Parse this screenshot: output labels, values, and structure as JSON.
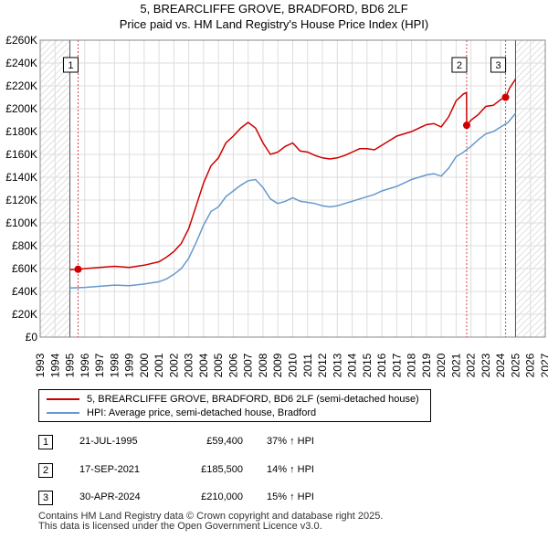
{
  "header": {
    "title": "5, BREARCLIFFE GROVE, BRADFORD, BD6 2LF",
    "subtitle": "Price paid vs. HM Land Registry's House Price Index (HPI)"
  },
  "colors": {
    "price_line": "#cc0000",
    "hpi_line": "#6699cc",
    "marker_vline": "#dd4444",
    "hatch": "#cccccc",
    "grid": "#dddddd"
  },
  "chart_data": {
    "type": "line",
    "title": "5, BREARCLIFFE GROVE, BRADFORD, BD6 2LF",
    "subtitle": "Price paid vs. HM Land Registry's House Price Index (HPI)",
    "xlabel": "",
    "ylabel": "",
    "xlim": [
      1993,
      2027
    ],
    "ylim": [
      0,
      260000
    ],
    "grid": true,
    "data_start": 1995.0,
    "data_end": 2025.0,
    "y_ticks": [
      0,
      20000,
      40000,
      60000,
      80000,
      100000,
      120000,
      140000,
      160000,
      180000,
      200000,
      220000,
      240000,
      260000
    ],
    "y_tick_labels": [
      "£0",
      "£20K",
      "£40K",
      "£60K",
      "£80K",
      "£100K",
      "£120K",
      "£140K",
      "£160K",
      "£180K",
      "£200K",
      "£220K",
      "£240K",
      "£260K"
    ],
    "x_ticks": [
      1993,
      1994,
      1995,
      1996,
      1997,
      1998,
      1999,
      2000,
      2001,
      2002,
      2003,
      2004,
      2005,
      2006,
      2007,
      2008,
      2009,
      2010,
      2011,
      2012,
      2013,
      2014,
      2015,
      2016,
      2017,
      2018,
      2019,
      2020,
      2021,
      2022,
      2023,
      2024,
      2025,
      2026,
      2027
    ],
    "x_tick_labels": [
      "1993",
      "1994",
      "1995",
      "1996",
      "1997",
      "1998",
      "1999",
      "2000",
      "2001",
      "2002",
      "2003",
      "2004",
      "2005",
      "2006",
      "2007",
      "2008",
      "2009",
      "2010",
      "2011",
      "2012",
      "2013",
      "2014",
      "2015",
      "2016",
      "2017",
      "2018",
      "2019",
      "2020",
      "2021",
      "2022",
      "2023",
      "2024",
      "2025",
      "2026",
      "2027"
    ],
    "series": [
      {
        "name": "5, BREARCLIFFE GROVE, BRADFORD, BD6 2LF (semi-detached house)",
        "color": "#cc0000",
        "x": [
          1995.0,
          1995.55,
          1996.0,
          1997.0,
          1998.0,
          1999.0,
          2000.0,
          2001.0,
          2001.5,
          2002.0,
          2002.5,
          2003.0,
          2003.5,
          2004.0,
          2004.5,
          2005.0,
          2005.5,
          2006.0,
          2006.5,
          2007.0,
          2007.5,
          2008.0,
          2008.5,
          2009.0,
          2009.5,
          2010.0,
          2010.5,
          2011.0,
          2011.5,
          2012.0,
          2012.5,
          2013.0,
          2013.5,
          2014.0,
          2014.5,
          2015.0,
          2015.5,
          2016.0,
          2016.5,
          2017.0,
          2017.5,
          2018.0,
          2018.5,
          2019.0,
          2019.5,
          2020.0,
          2020.5,
          2021.0,
          2021.5,
          2021.7,
          2021.71,
          2022.0,
          2022.5,
          2023.0,
          2023.5,
          2024.0,
          2024.33,
          2024.6,
          2025.0
        ],
        "values": [
          59000,
          59400,
          60000,
          61000,
          62000,
          61000,
          63000,
          66000,
          70000,
          75000,
          82000,
          95000,
          115000,
          135000,
          150000,
          157000,
          170000,
          176000,
          183000,
          188000,
          183000,
          170000,
          160000,
          162000,
          167000,
          170000,
          163000,
          162000,
          159000,
          157000,
          156000,
          157000,
          159000,
          162000,
          165000,
          165000,
          164000,
          168000,
          172000,
          176000,
          178000,
          180000,
          183000,
          186000,
          187000,
          184000,
          193000,
          207000,
          213000,
          214000,
          185500,
          190000,
          195000,
          202000,
          203000,
          208000,
          210000,
          218000,
          226000
        ]
      },
      {
        "name": "HPI: Average price, semi-detached house, Bradford",
        "color": "#6699cc",
        "x": [
          1995.0,
          1996.0,
          1997.0,
          1998.0,
          1999.0,
          2000.0,
          2001.0,
          2001.5,
          2002.0,
          2002.5,
          2003.0,
          2003.5,
          2004.0,
          2004.5,
          2005.0,
          2005.5,
          2006.0,
          2006.5,
          2007.0,
          2007.5,
          2008.0,
          2008.5,
          2009.0,
          2009.5,
          2010.0,
          2010.5,
          2011.0,
          2011.5,
          2012.0,
          2012.5,
          2013.0,
          2013.5,
          2014.0,
          2014.5,
          2015.0,
          2015.5,
          2016.0,
          2016.5,
          2017.0,
          2017.5,
          2018.0,
          2018.5,
          2019.0,
          2019.5,
          2020.0,
          2020.5,
          2021.0,
          2021.5,
          2022.0,
          2022.5,
          2023.0,
          2023.5,
          2024.0,
          2024.5,
          2025.0
        ],
        "values": [
          43000,
          43500,
          44500,
          45500,
          45000,
          46500,
          48500,
          51000,
          55000,
          60000,
          69000,
          83000,
          98000,
          110000,
          114000,
          123000,
          128000,
          133000,
          137000,
          138000,
          131000,
          121000,
          117000,
          119000,
          122000,
          119000,
          118000,
          117000,
          115000,
          114000,
          115000,
          117000,
          119000,
          121000,
          123000,
          125000,
          128000,
          130000,
          132000,
          135000,
          138000,
          140000,
          142000,
          143000,
          141000,
          148000,
          158000,
          162000,
          167000,
          173000,
          178000,
          180000,
          184000,
          188000,
          196000
        ]
      }
    ],
    "sales": [
      {
        "label": "1",
        "x": 1995.55,
        "value": 59400
      },
      {
        "label": "2",
        "x": 2021.71,
        "value": 185500
      },
      {
        "label": "3",
        "x": 2024.33,
        "value": 210000
      }
    ]
  },
  "legend": {
    "items": [
      {
        "label": "5, BREARCLIFFE GROVE, BRADFORD, BD6 2LF (semi-detached house)"
      },
      {
        "label": "HPI: Average price, semi-detached house, Bradford"
      }
    ]
  },
  "transactions": [
    {
      "num": "1",
      "date": "21-JUL-1995",
      "price": "£59,400",
      "hpi": "37% ↑ HPI"
    },
    {
      "num": "2",
      "date": "17-SEP-2021",
      "price": "£185,500",
      "hpi": "14% ↑ HPI"
    },
    {
      "num": "3",
      "date": "30-APR-2024",
      "price": "£210,000",
      "hpi": "15% ↑ HPI"
    }
  ],
  "footer": {
    "line1": "Contains HM Land Registry data © Crown copyright and database right 2025.",
    "line2": "This data is licensed under the Open Government Licence v3.0."
  }
}
